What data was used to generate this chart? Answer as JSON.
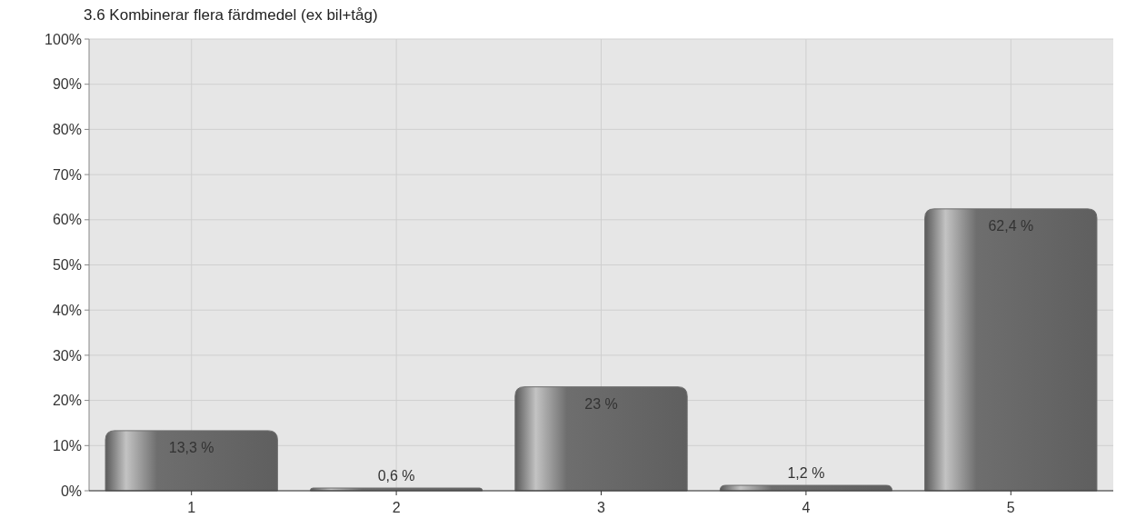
{
  "chart_data": {
    "type": "bar",
    "title": "3.6 Kombinerar flera färdmedel (ex bil+tåg)",
    "categories": [
      "1",
      "2",
      "3",
      "4",
      "5"
    ],
    "values": [
      13.3,
      0.6,
      23,
      1.2,
      62.4
    ],
    "value_labels": [
      "13,3 %",
      "0,6 %",
      "23 %",
      "1,2 %",
      "62,4 %"
    ],
    "color": "#6e6e6e",
    "ylim": [
      0,
      100
    ],
    "yticks": [
      {
        "value": 0,
        "label": "0%"
      },
      {
        "value": 10,
        "label": "10%"
      },
      {
        "value": 20,
        "label": "20%"
      },
      {
        "value": 30,
        "label": "30%"
      },
      {
        "value": 40,
        "label": "40%"
      },
      {
        "value": 50,
        "label": "50%"
      },
      {
        "value": 60,
        "label": "60%"
      },
      {
        "value": 70,
        "label": "70%"
      },
      {
        "value": 80,
        "label": "80%"
      },
      {
        "value": 90,
        "label": "90%"
      },
      {
        "value": 100,
        "label": "100%"
      }
    ],
    "grid": true
  }
}
